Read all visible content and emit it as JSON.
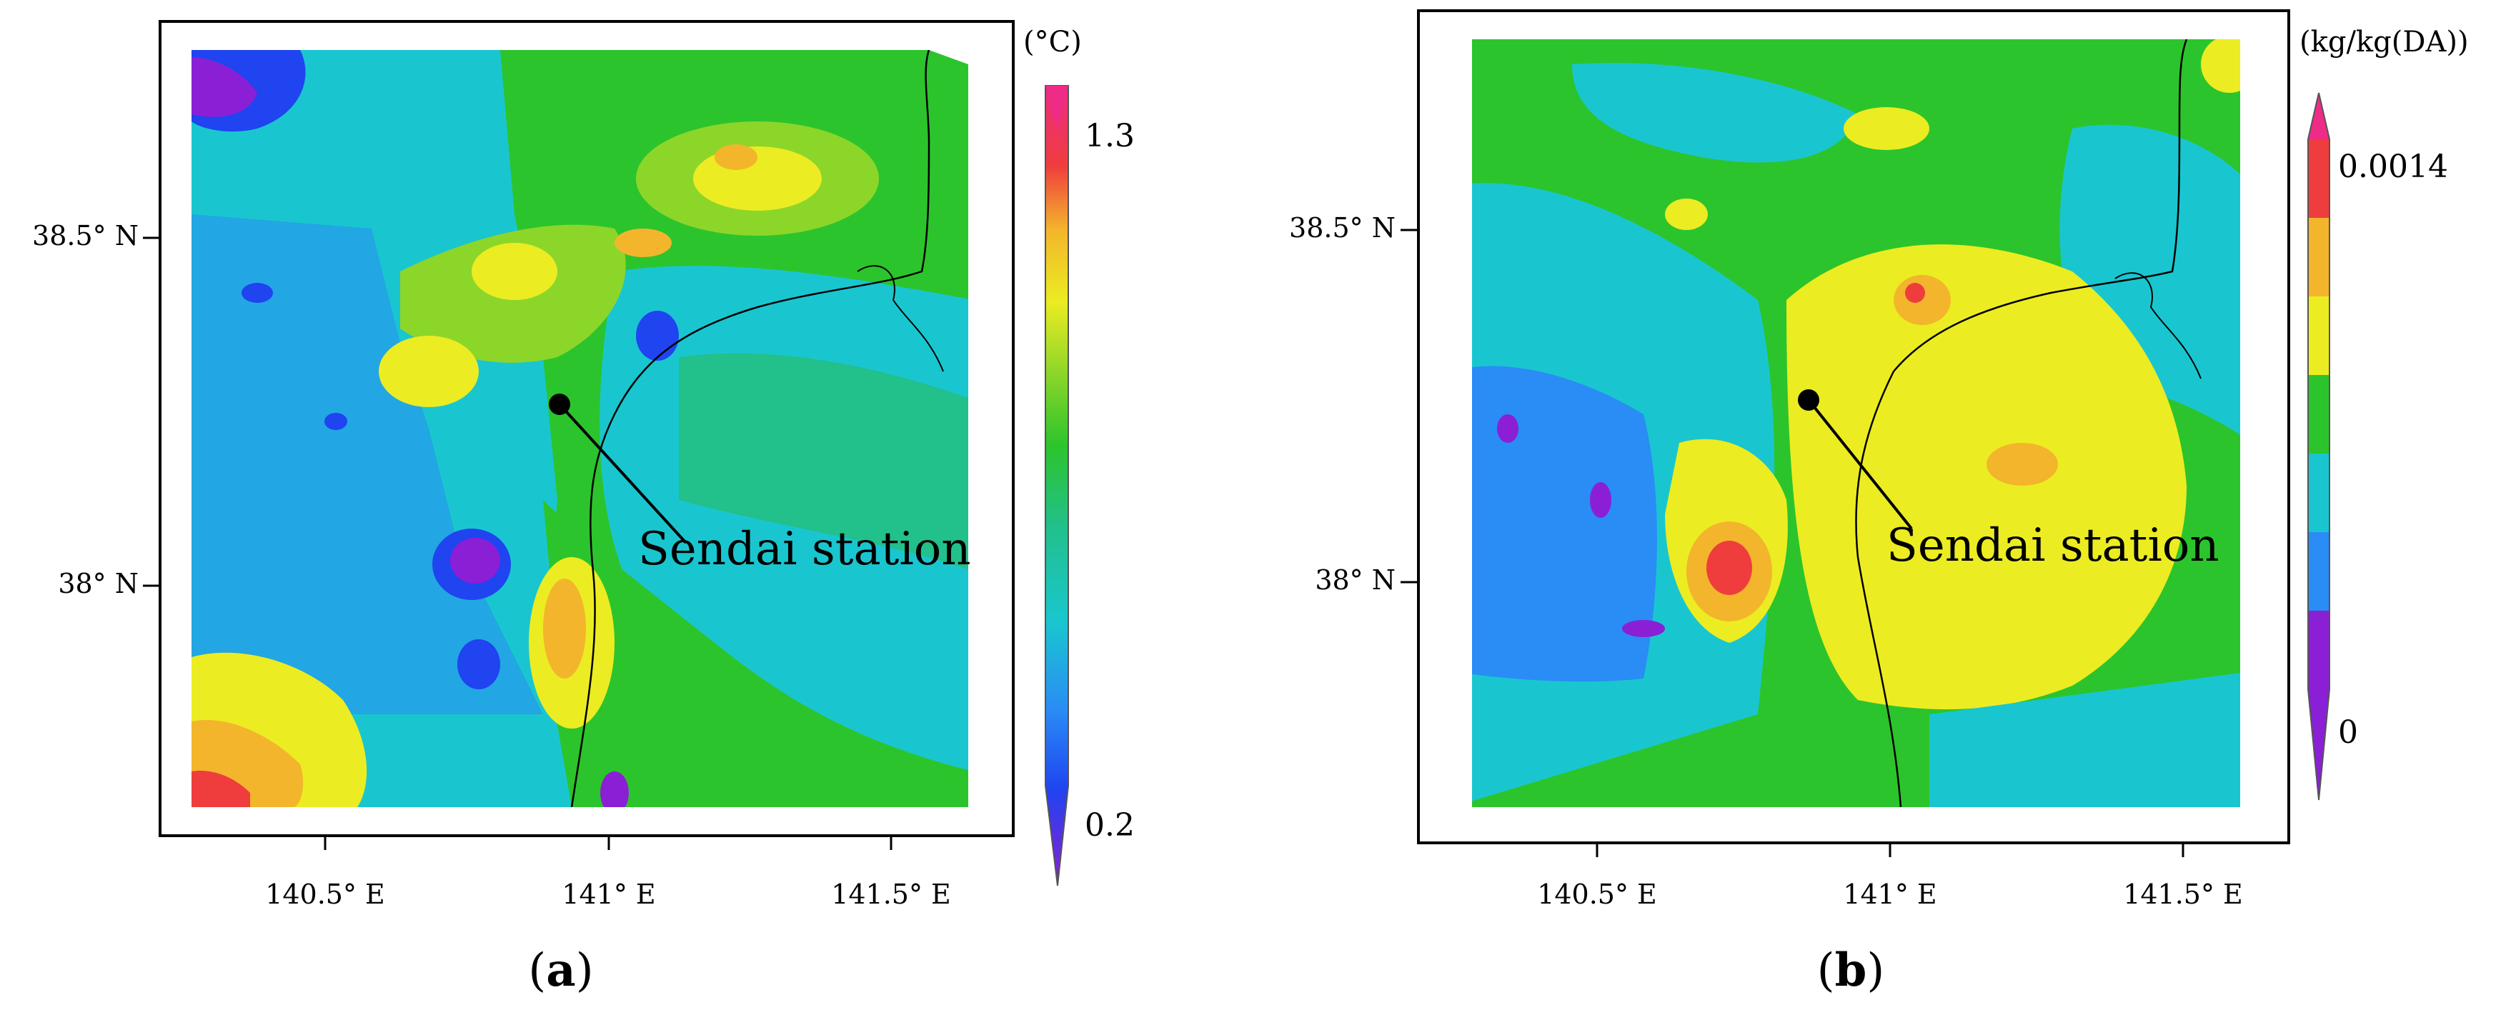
{
  "panels": [
    {
      "id": "a",
      "caption": "(a)",
      "caption_letter": "a",
      "colorbar": {
        "unit": "(°C)",
        "max_label": "1.3",
        "min_label": "0.2",
        "colors": [
          "#8a1fd6",
          "#1f44f0",
          "#2a8cf5",
          "#19c6cf",
          "#22c08a",
          "#2cc42c",
          "#8cd62a",
          "#ecec22",
          "#f3b52c",
          "#f07d2a",
          "#ef3d3d",
          "#ee2b86"
        ]
      },
      "x_ticks": [
        "140.5° E",
        "141° E",
        "141.5° E"
      ],
      "y_ticks": [
        "38.5° N",
        "38° N"
      ],
      "station_label": "Sendai station"
    },
    {
      "id": "b",
      "caption": "(b)",
      "caption_letter": "b",
      "colorbar": {
        "unit": "(kg/kg(DA))",
        "max_label": "0.0014",
        "min_label": "0",
        "colors": [
          "#8a1fd6",
          "#2a8cf5",
          "#19c6cf",
          "#2cc42c",
          "#ecec22",
          "#f3b52c",
          "#ef3d3d",
          "#ee2b86"
        ]
      },
      "x_ticks": [
        "140.5° E",
        "141° E",
        "141.5° E"
      ],
      "y_ticks": [
        "38.5° N",
        "38° N"
      ],
      "station_label": "Sendai station"
    }
  ]
}
